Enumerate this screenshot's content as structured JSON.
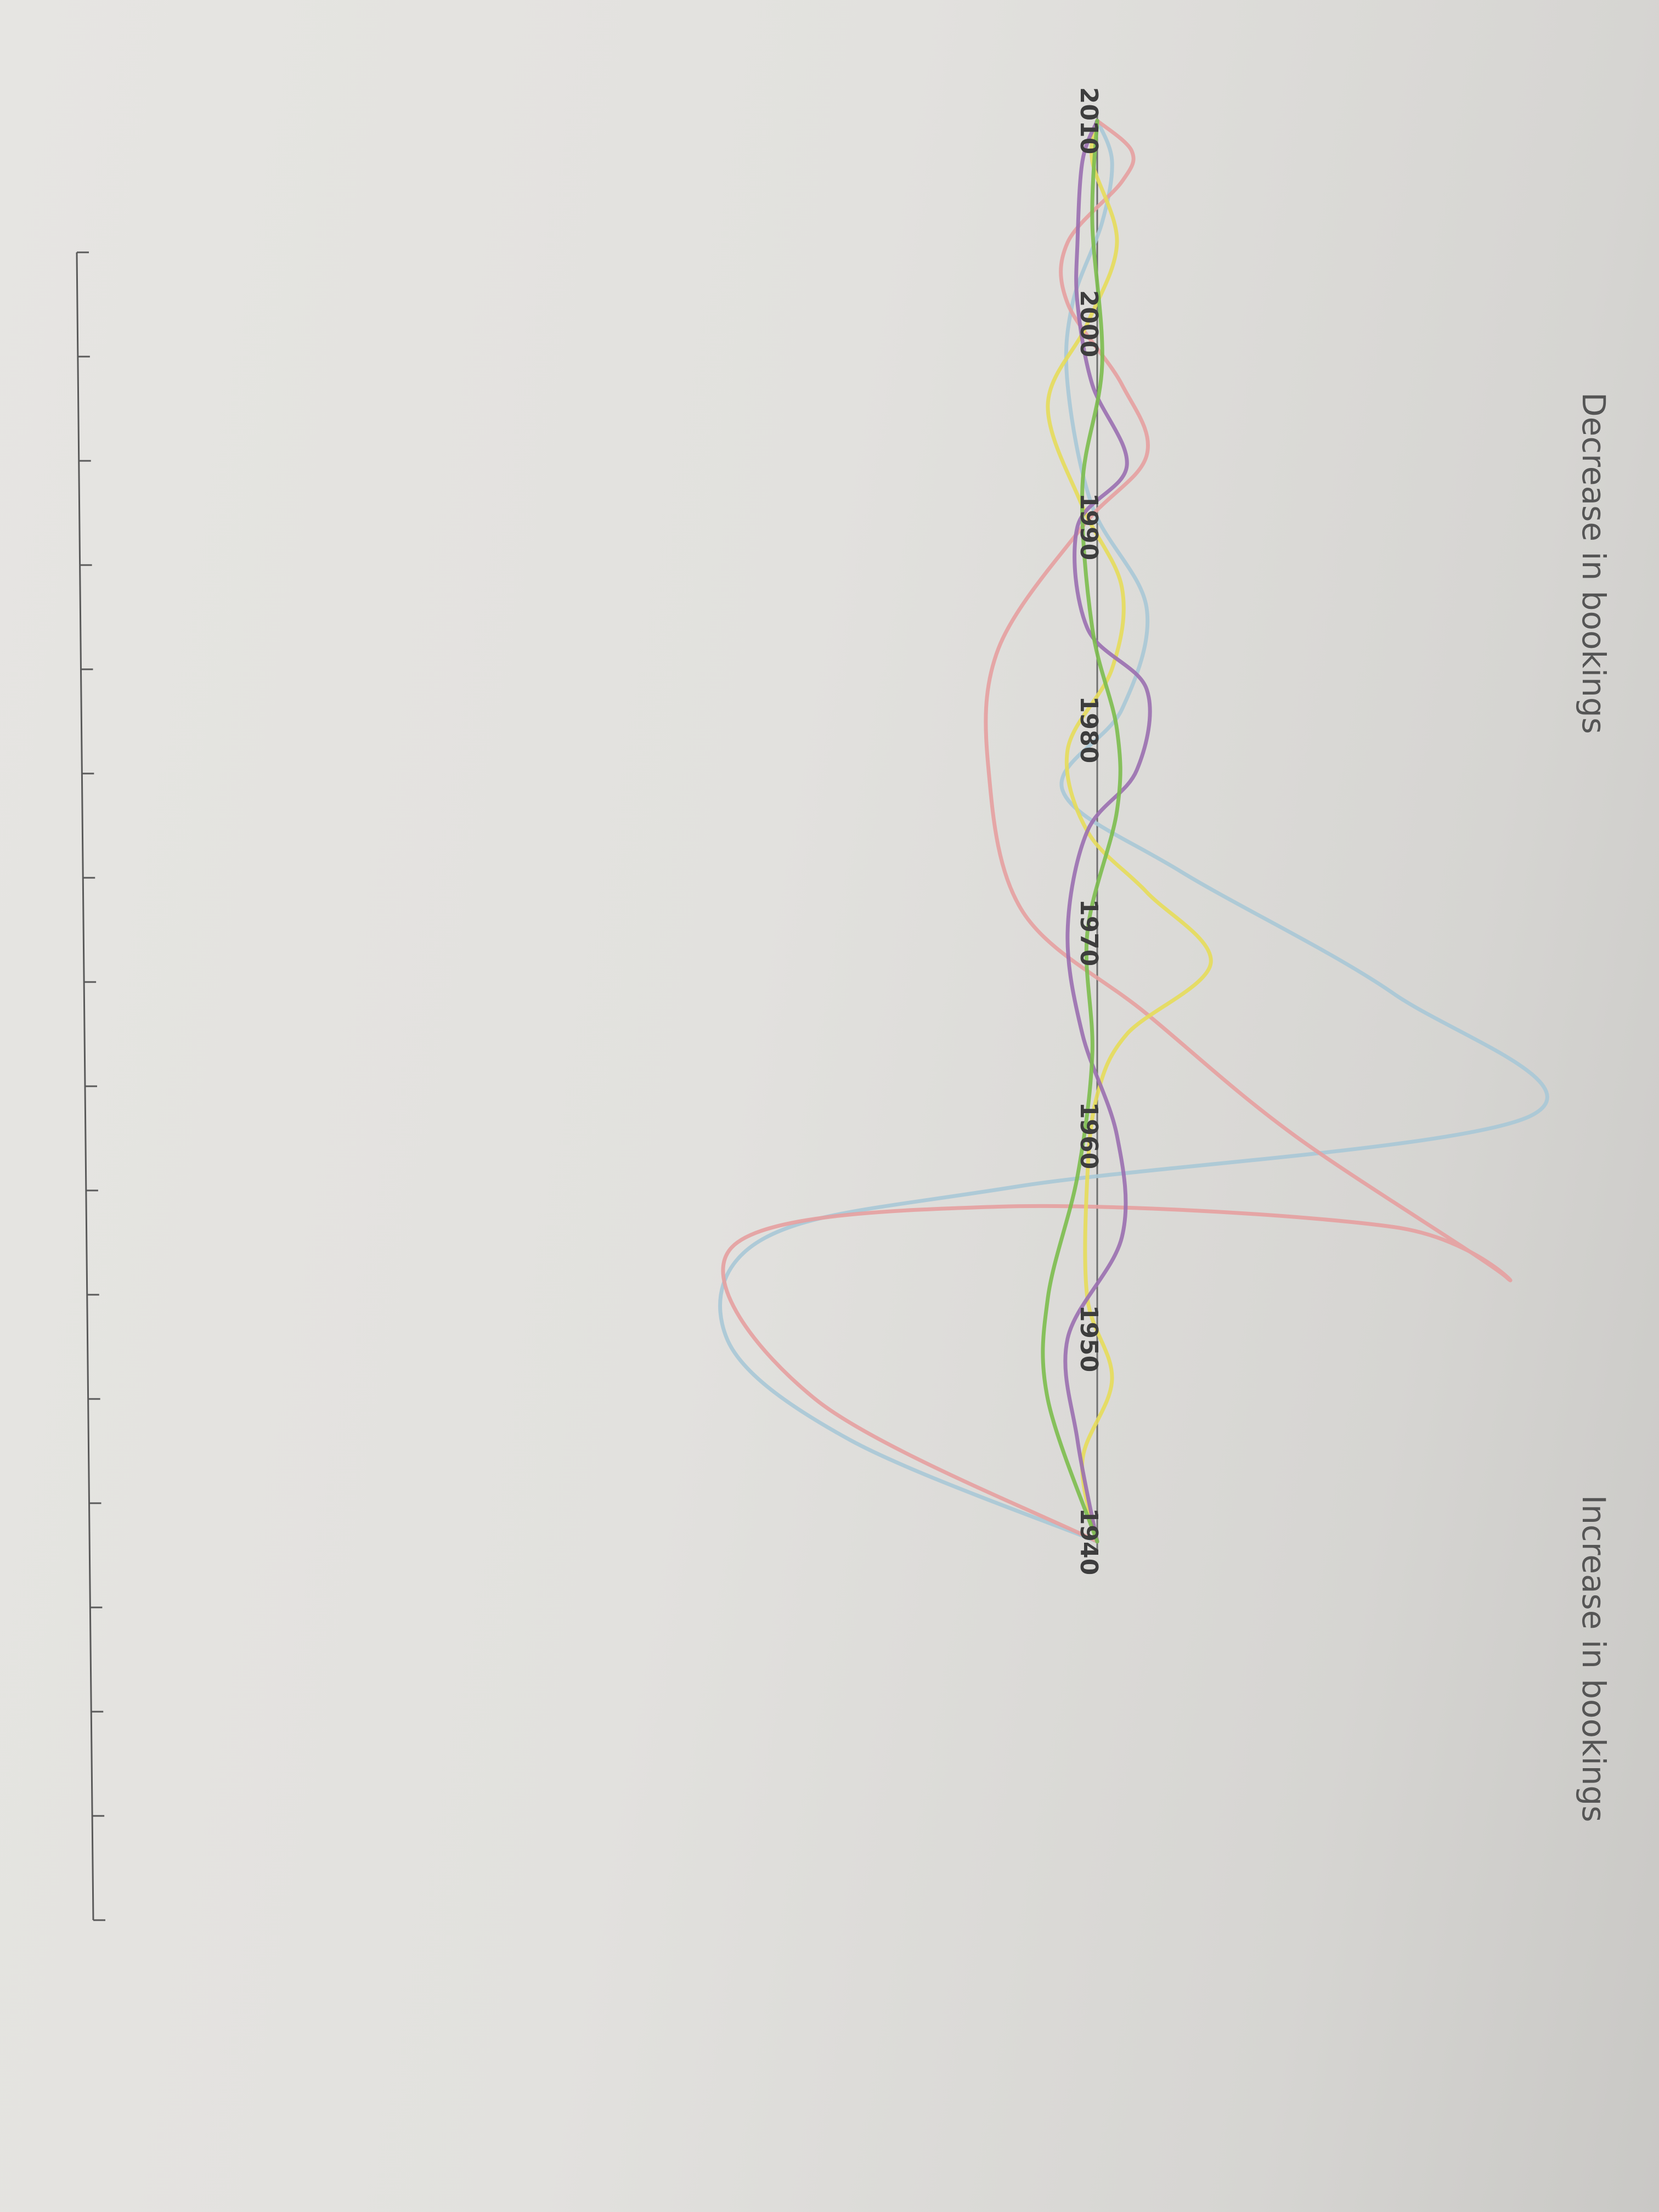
{
  "chart_data": {
    "type": "line",
    "orientation": "rotated-90-clockwise",
    "medium": "colored pencil on paper",
    "x": [
      "1940",
      "1950",
      "1960",
      "1970",
      "1980",
      "1990",
      "2000",
      "2010"
    ],
    "x_labels": [
      "1940",
      "1950",
      "1960",
      "1970",
      "1980",
      "1990",
      "2000",
      "2010"
    ],
    "ylabel_positive": "Increase in bookings",
    "ylabel_negative": "Decrease in bookings",
    "ylim": [
      -10,
      10
    ],
    "grid": false,
    "legend": "none",
    "series": [
      {
        "color": "#a9c8d6",
        "points": [
          [
            1940,
            0
          ],
          [
            1945,
            5
          ],
          [
            1950,
            7.5
          ],
          [
            1955,
            6.7
          ],
          [
            1957.5,
            1.6
          ],
          [
            1961,
            -8.8
          ],
          [
            1967,
            -6.0
          ],
          [
            1973,
            -1.7
          ],
          [
            1977,
            0.7
          ],
          [
            1981,
            -0.5
          ],
          [
            1986,
            -1.0
          ],
          [
            1991,
            0.1
          ],
          [
            1997,
            0.6
          ],
          [
            2001,
            0.5
          ],
          [
            2005,
            -0.1
          ],
          [
            2008,
            -0.3
          ],
          [
            2010,
            0
          ]
        ]
      },
      {
        "color": "#e6a0a0",
        "points": [
          [
            1940,
            0
          ],
          [
            1947,
            5.7
          ],
          [
            1954.5,
            7.4
          ],
          [
            1956.5,
            2.0
          ],
          [
            1955.5,
            -6.0
          ],
          [
            1953,
            -8.3
          ],
          [
            1960,
            -4.0
          ],
          [
            1966,
            -1.0
          ],
          [
            1971,
            1.5
          ],
          [
            1978,
            2.2
          ],
          [
            1984,
            2.0
          ],
          [
            1990,
            0.3
          ],
          [
            1993.5,
            -1.0
          ],
          [
            1997,
            -0.5
          ],
          [
            2001,
            0.6
          ],
          [
            2004,
            0.6
          ],
          [
            2007,
            -0.5
          ],
          [
            2008.5,
            -0.7
          ],
          [
            2010,
            0
          ]
        ]
      },
      {
        "color": "#e6dc5a",
        "points": [
          [
            1940,
            0
          ],
          [
            1944,
            0.3
          ],
          [
            1948,
            -0.3
          ],
          [
            1952,
            0.2
          ],
          [
            1958,
            0.2
          ],
          [
            1962,
            0
          ],
          [
            1965,
            -0.6
          ],
          [
            1968.5,
            -2.3
          ],
          [
            1972,
            -1.0
          ],
          [
            1975,
            0.2
          ],
          [
            1979,
            0.6
          ],
          [
            1983,
            -0.3
          ],
          [
            1987,
            -0.5
          ],
          [
            1991,
            0.3
          ],
          [
            1996,
            1.0
          ],
          [
            2000,
            0.2
          ],
          [
            2004,
            -0.4
          ],
          [
            2008,
            0.1
          ],
          [
            2010,
            0
          ]
        ]
      },
      {
        "color": "#9a6fb0",
        "points": [
          [
            1940,
            0
          ],
          [
            1945,
            0.4
          ],
          [
            1950,
            0.6
          ],
          [
            1955,
            -0.5
          ],
          [
            1960,
            -0.4
          ],
          [
            1965,
            0.3
          ],
          [
            1970,
            0.6
          ],
          [
            1975,
            0.2
          ],
          [
            1978,
            -0.8
          ],
          [
            1982,
            -1.0
          ],
          [
            1985,
            0.2
          ],
          [
            1990,
            0.4
          ],
          [
            1993,
            -0.6
          ],
          [
            1997,
            0.1
          ],
          [
            2001,
            0.4
          ],
          [
            2004,
            0.4
          ],
          [
            2008,
            0.3
          ],
          [
            2010,
            0
          ]
        ]
      },
      {
        "color": "#7cbd4e",
        "points": [
          [
            1940,
            0
          ],
          [
            1947,
            1.0
          ],
          [
            1952,
            1.0
          ],
          [
            1958,
            0.4
          ],
          [
            1964,
            0.1
          ],
          [
            1970,
            0.2
          ],
          [
            1976,
            -0.4
          ],
          [
            1980,
            -0.4
          ],
          [
            1985,
            0.1
          ],
          [
            1992,
            0.3
          ],
          [
            1998,
            -0.1
          ],
          [
            2005,
            0.1
          ],
          [
            2010,
            0
          ]
        ]
      }
    ]
  }
}
